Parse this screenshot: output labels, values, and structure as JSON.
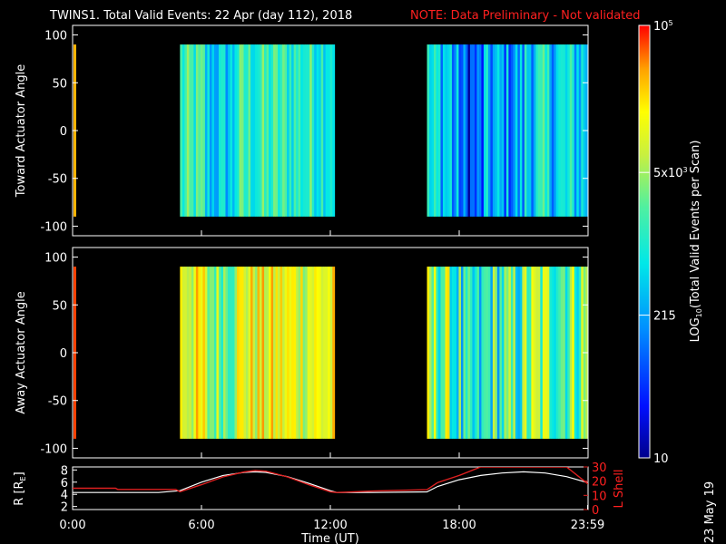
{
  "header": {
    "title": "TWINS1. Total Valid Events: 22 Apr (day 112), 2018",
    "note": "NOTE: Data Preliminary - Not validated"
  },
  "stamp": "23 May 19",
  "colors": {
    "background": "#000000",
    "axis": "#ffffff",
    "note": "#ff2020",
    "lshell": "#e02020",
    "radius": "#ffffff"
  },
  "chart_data": [
    {
      "type": "heatmap",
      "panel": "toward",
      "ylabel": "Toward Actuator Angle",
      "ylim": [
        -110,
        110
      ],
      "yticks": [
        -100,
        -50,
        0,
        50,
        100
      ],
      "y_range": [
        -90,
        90
      ],
      "xlim": [
        0,
        24
      ],
      "x_unit": "hours UT",
      "blocks": [
        {
          "x_start": 5.0,
          "x_end": 12.2,
          "level": 0.52,
          "variability": 0.28
        },
        {
          "x_start": 16.5,
          "x_end": 23.99,
          "level": 0.42,
          "variability": 0.38
        }
      ],
      "edge_strip": {
        "x": 0.0,
        "level": 0.88
      }
    },
    {
      "type": "heatmap",
      "panel": "away",
      "ylabel": "Away Actuator Angle",
      "ylim": [
        -110,
        110
      ],
      "yticks": [
        -100,
        -50,
        0,
        50,
        100
      ],
      "y_range": [
        -90,
        90
      ],
      "xlim": [
        0,
        24
      ],
      "x_unit": "hours UT",
      "blocks": [
        {
          "x_start": 5.0,
          "x_end": 12.2,
          "level": 0.76,
          "variability": 0.3
        },
        {
          "x_start": 16.5,
          "x_end": 23.99,
          "level": 0.62,
          "variability": 0.45
        }
      ],
      "edge_strip": {
        "x": 0.0,
        "level": 0.96
      }
    },
    {
      "type": "line",
      "panel": "orbit",
      "xlabel": "Time (UT)",
      "xticks": [
        "0:00",
        "6:00",
        "12:00",
        "18:00",
        "23:59"
      ],
      "xtick_hours": [
        0,
        6,
        12,
        18,
        23.98
      ],
      "ylabel_left": "R [R",
      "ylabel_left_sub": "E",
      "ylabel_left_end": "]",
      "ylim_left": [
        1.5,
        8.5
      ],
      "yticks_left": [
        2,
        4,
        6,
        8
      ],
      "ylabel_right": "L Shell",
      "ylim_right": [
        0,
        30
      ],
      "yticks_right": [
        0,
        10,
        20,
        30
      ],
      "series": [
        {
          "axis": "left",
          "x": [
            0,
            2,
            4,
            5,
            6,
            7,
            8,
            8.5,
            9,
            10,
            11,
            12,
            12.3,
            14,
            16.5,
            17,
            18,
            19,
            20,
            21,
            22,
            23,
            24
          ],
          "y": [
            4.3,
            4.3,
            4.3,
            4.6,
            6.0,
            7.1,
            7.6,
            7.7,
            7.6,
            6.9,
            5.8,
            4.6,
            4.3,
            4.3,
            4.4,
            5.3,
            6.4,
            7.1,
            7.5,
            7.7,
            7.5,
            6.9,
            5.9
          ]
        },
        {
          "axis": "right",
          "x": [
            0,
            2,
            2.1,
            4.8,
            5,
            6,
            7,
            8,
            8.5,
            9,
            10,
            11,
            12,
            12.3,
            14,
            16.5,
            17,
            18,
            19,
            23,
            24
          ],
          "y": [
            15.0,
            15.0,
            14.2,
            14.2,
            12.5,
            17.5,
            23.0,
            26.5,
            27.5,
            27.0,
            23.0,
            17.5,
            12.5,
            12.0,
            13.0,
            14.0,
            19.0,
            24.0,
            30.0,
            30.0,
            18.0
          ]
        }
      ]
    },
    {
      "type": "colorbar",
      "label": "LOG",
      "label_sub": "10",
      "label_end": "(Total Valid Events per Scan)",
      "tick_labels": [
        {
          "text": "10",
          "sup": "5",
          "level": 1.0
        },
        {
          "text": "5x10",
          "sup": "3",
          "level": 0.66
        },
        {
          "text": "215",
          "sup": "",
          "level": 0.33
        },
        {
          "text": "10",
          "sup": "",
          "level": 0.0
        }
      ]
    }
  ]
}
